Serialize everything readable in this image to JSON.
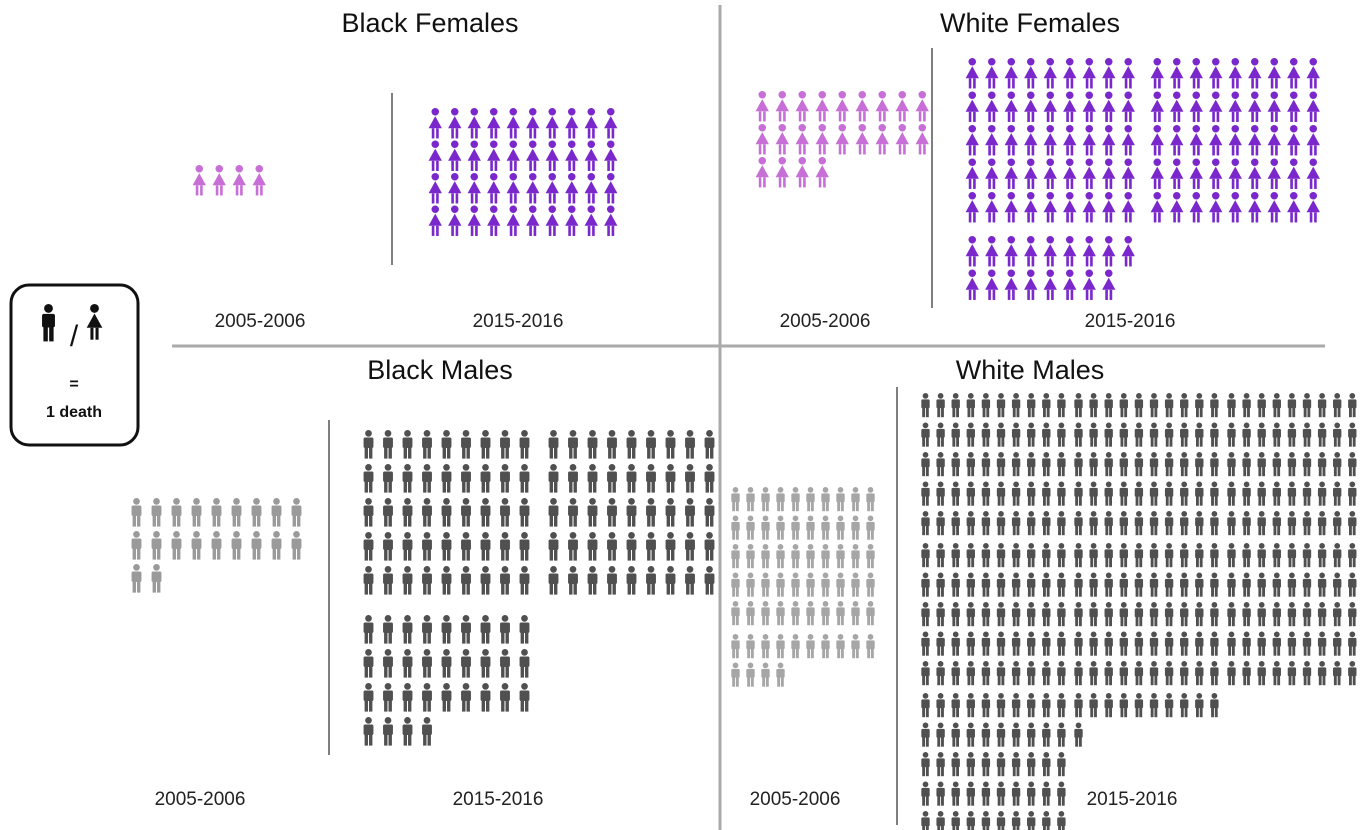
{
  "chart_data": {
    "type": "pictograph",
    "panels": [
      {
        "title": "Black Females",
        "icon": "female",
        "periods": [
          {
            "label": "2005-2006",
            "deaths": 4,
            "color": "#c76fd6"
          },
          {
            "label": "2015-2016",
            "deaths": 40,
            "color": "#7a28cc"
          }
        ]
      },
      {
        "title": "White Females",
        "icon": "female",
        "periods": [
          {
            "label": "2005-2006",
            "deaths": 22,
            "color": "#c76fd6"
          },
          {
            "label": "2015-2016",
            "deaths": 107,
            "color": "#7a28cc"
          }
        ]
      },
      {
        "title": "Black Males",
        "icon": "male",
        "periods": [
          {
            "label": "2005-2006",
            "deaths": 20,
            "color": "#9a9a9a"
          },
          {
            "label": "2015-2016",
            "deaths": 121,
            "color": "#505050"
          }
        ]
      },
      {
        "title": "White Males",
        "icon": "male",
        "periods": [
          {
            "label": "2005-2006",
            "deaths": 64,
            "color": "#a6a6a6"
          },
          {
            "label": "2015-2016",
            "deaths": 361,
            "color": "#505050"
          }
        ]
      }
    ],
    "legend": {
      "separator": "/",
      "equals": "=",
      "unit": "1 death"
    }
  }
}
